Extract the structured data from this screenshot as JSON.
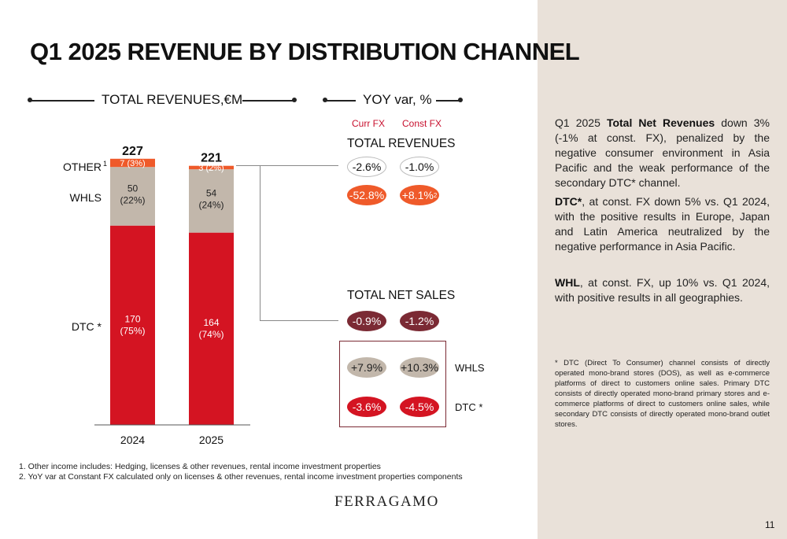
{
  "title": "Q1 2025 REVENUE BY DISTRIBUTION CHANNEL",
  "left_header": "TOTAL REVENUES,€M",
  "right_header": "YOY var, %",
  "fx_labels": {
    "curr": "Curr FX",
    "const": "Const FX"
  },
  "yoy": {
    "total_revenues_title": "TOTAL REVENUES",
    "total_revenues": {
      "curr": "-2.6%",
      "const": "-1.0%"
    },
    "other": {
      "curr": "-52.8%",
      "const": "+8.1%",
      "const_sup": "2"
    },
    "total_net_sales_title": "TOTAL NET SALES",
    "total_net_sales": {
      "curr": "-0.9%",
      "const": "-1.2%"
    },
    "whls": {
      "label": "WHLS",
      "curr": "+7.9%",
      "const": "+10.3%"
    },
    "dtc": {
      "label": "DTC *",
      "curr": "-3.6%",
      "const": "-4.5%"
    }
  },
  "chart_data": {
    "type": "bar",
    "stacked": true,
    "categories": [
      "2024",
      "2025"
    ],
    "totals": [
      227,
      221
    ],
    "series": [
      {
        "name": "DTC *",
        "values": [
          170,
          164
        ],
        "shares": [
          "(75%)",
          "(74%)"
        ],
        "color": "#d41422"
      },
      {
        "name": "WHLS",
        "values": [
          50,
          54
        ],
        "shares": [
          "(22%)",
          "(24%)"
        ],
        "color": "#c2b7ab"
      },
      {
        "name": "OTHER",
        "name_sup": "1",
        "values": [
          7,
          3
        ],
        "shares": [
          "(3%)",
          "(2%)"
        ],
        "color": "#ef5a2a"
      }
    ],
    "total_labels": [
      "227",
      "221"
    ],
    "segment_labels": {
      "dtc": [
        [
          "170",
          "(75%)"
        ],
        [
          "164",
          "(74%)"
        ]
      ],
      "whls": [
        [
          "50",
          "(22%)"
        ],
        [
          "54",
          "(24%)"
        ]
      ],
      "other": [
        "7 (3%)",
        "3 (2%)"
      ]
    }
  },
  "right_panel": {
    "p1_bold": "Total Net Revenues",
    "p1_pre": "Q1 2025 ",
    "p1_post": " down 3% (-1% at const. FX), penalized by the negative consumer environment in Asia Pacific and the weak performance of the secondary DTC* channel.",
    "p2_bold": "DTC*",
    "p2_post": ", at const. FX down 5% vs. Q1 2024, with the positive results in Europe, Japan and Latin America neutralized by the negative performance in Asia Pacific.",
    "p3_bold": "WHL",
    "p3_post": ", at const. FX, up 10% vs. Q1 2024, with positive results in all geographies.",
    "note": "* DTC (Direct To Consumer) channel consists of directly operated mono-brand stores (DOS), as well as e-commerce platforms of direct to customers online sales. Primary DTC consists of directly operated mono-brand primary stores and e-commerce platforms of direct to customers online sales, while secondary DTC consists of directly operated mono-brand outlet stores."
  },
  "footnotes": [
    "1.   Other income includes: Hedging, licenses & other revenues, rental income investment properties",
    "2.   YoY var at Constant FX calculated only on licenses & other revenues, rental income investment properties components"
  ],
  "logo": "FERRAGAMO",
  "page_number": "11",
  "colors": {
    "dtc": "#d41422",
    "whls": "#c2b7ab",
    "other": "#ef5a2a",
    "maroon": "#7b2a34",
    "panel": "#e9e1d9"
  }
}
